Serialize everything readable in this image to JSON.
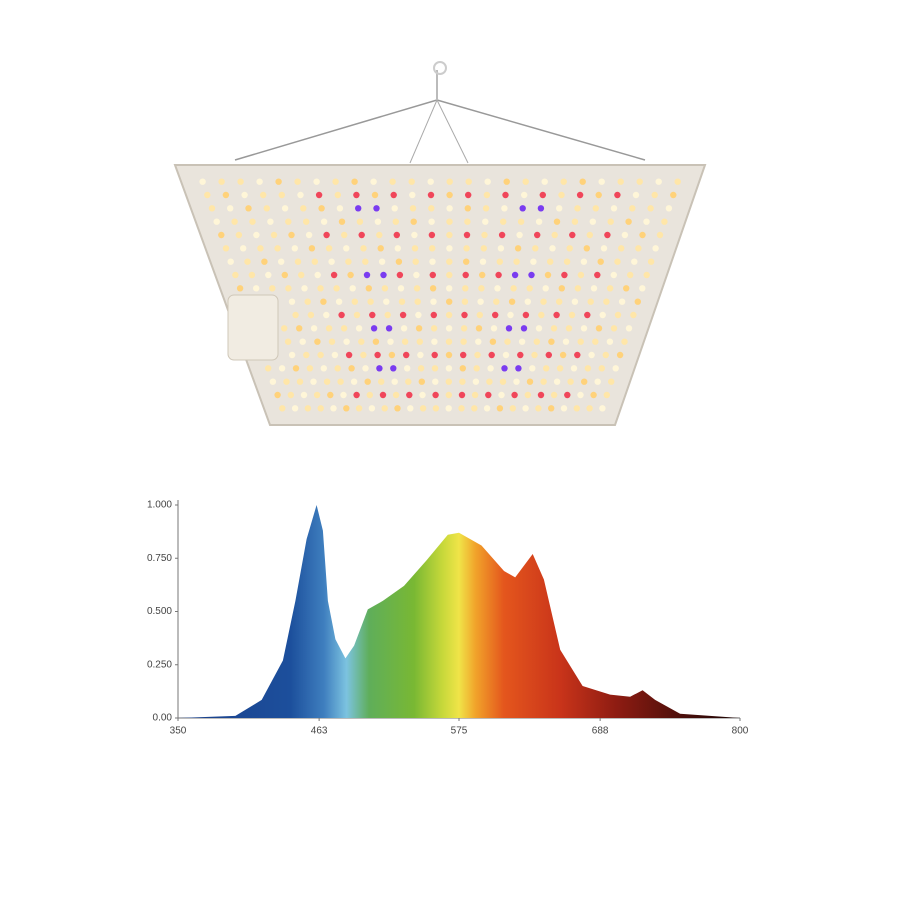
{
  "chart_data": {
    "type": "area",
    "x": [
      350,
      396,
      417,
      434,
      444,
      453,
      461,
      466,
      470,
      476,
      484,
      491,
      502,
      514,
      531,
      549,
      566,
      575,
      593,
      611,
      620,
      634,
      643,
      656,
      674,
      696,
      712,
      722,
      732,
      752,
      800
    ],
    "values": [
      0,
      0.01,
      0.085,
      0.27,
      0.55,
      0.84,
      1.0,
      0.88,
      0.55,
      0.37,
      0.28,
      0.34,
      0.51,
      0.55,
      0.62,
      0.74,
      0.86,
      0.87,
      0.81,
      0.69,
      0.66,
      0.77,
      0.65,
      0.32,
      0.15,
      0.11,
      0.1,
      0.13,
      0.085,
      0.02,
      0
    ],
    "xlim": [
      350,
      800
    ],
    "xticks": [
      350,
      463,
      575,
      688,
      800
    ],
    "ylim": [
      0,
      1
    ],
    "yticks": [
      {
        "value": 0,
        "label": "0.00"
      },
      {
        "value": 0.25,
        "label": "0.250"
      },
      {
        "value": 0.5,
        "label": "0.500"
      },
      {
        "value": 0.75,
        "label": "0.750"
      },
      {
        "value": 1,
        "label": "1.000"
      }
    ],
    "grid": false
  }
}
